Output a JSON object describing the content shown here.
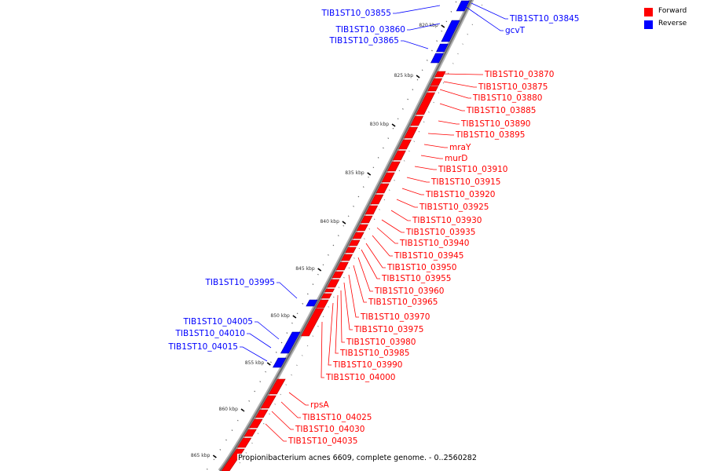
{
  "legend": {
    "forward_label": "Forward",
    "reverse_label": "Reverse",
    "forward_color": "#ff0000",
    "reverse_color": "#0000ff"
  },
  "caption": "Propionibacterium acnes 6609, complete genome. - 0..2560282",
  "scale_labels": [
    "820 kbp",
    "825 kbp",
    "830 kbp",
    "835 kbp",
    "840 kbp",
    "845 kbp",
    "850 kbp",
    "855 kbp",
    "860 kbp",
    "865 kbp"
  ],
  "reverse_genes": [
    {
      "label": "TIB1ST10_03855"
    },
    {
      "label": "TIB1ST10_03845"
    },
    {
      "label": "TIB1ST10_03860"
    },
    {
      "label": "gcvT"
    },
    {
      "label": "TIB1ST10_03865"
    },
    {
      "label": "TIB1ST10_03995"
    },
    {
      "label": "TIB1ST10_04005"
    },
    {
      "label": "TIB1ST10_04010"
    },
    {
      "label": "TIB1ST10_04015"
    }
  ],
  "forward_genes": [
    {
      "label": "TIB1ST10_03870"
    },
    {
      "label": "TIB1ST10_03875"
    },
    {
      "label": "TIB1ST10_03880"
    },
    {
      "label": "TIB1ST10_03885"
    },
    {
      "label": "TIB1ST10_03890"
    },
    {
      "label": "TIB1ST10_03895"
    },
    {
      "label": "mraY"
    },
    {
      "label": "murD"
    },
    {
      "label": "TIB1ST10_03910"
    },
    {
      "label": "TIB1ST10_03915"
    },
    {
      "label": "TIB1ST10_03920"
    },
    {
      "label": "TIB1ST10_03925"
    },
    {
      "label": "TIB1ST10_03930"
    },
    {
      "label": "TIB1ST10_03935"
    },
    {
      "label": "TIB1ST10_03940"
    },
    {
      "label": "TIB1ST10_03945"
    },
    {
      "label": "TIB1ST10_03950"
    },
    {
      "label": "TIB1ST10_03955"
    },
    {
      "label": "TIB1ST10_03960"
    },
    {
      "label": "TIB1ST10_03965"
    },
    {
      "label": "TIB1ST10_03970"
    },
    {
      "label": "TIB1ST10_03975"
    },
    {
      "label": "TIB1ST10_03980"
    },
    {
      "label": "TIB1ST10_03985"
    },
    {
      "label": "TIB1ST10_03990"
    },
    {
      "label": "TIB1ST10_04000"
    },
    {
      "label": "rpsA"
    },
    {
      "label": "TIB1ST10_04025"
    },
    {
      "label": "TIB1ST10_04030"
    },
    {
      "label": "TIB1ST10_04035"
    }
  ]
}
